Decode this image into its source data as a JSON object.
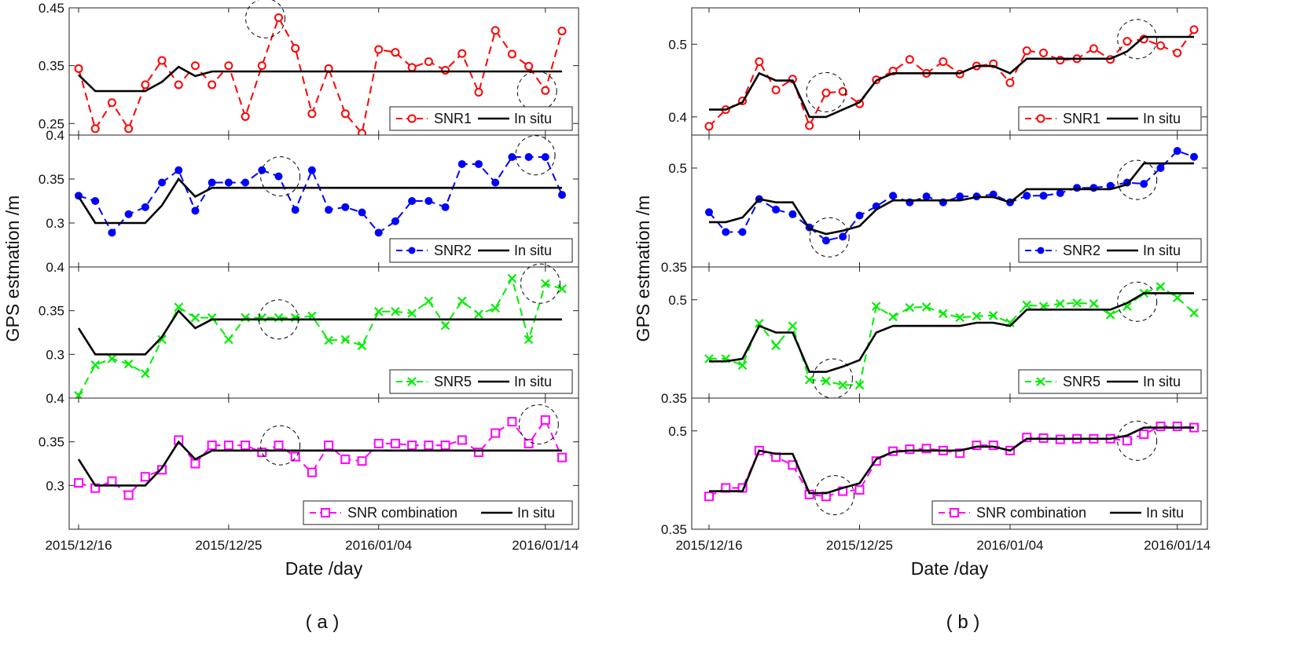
{
  "figure": {
    "panel_captions": [
      "( a )",
      "( b )"
    ],
    "ylabel": "GPS estmation /m",
    "xlabel": "Date /day",
    "xticks": [
      {
        "day": 1,
        "label": "2015/12/16"
      },
      {
        "day": 10,
        "label": "2015/12/25"
      },
      {
        "day": 19,
        "label": "2016/01/04"
      },
      {
        "day": 29,
        "label": "2016/01/14"
      }
    ]
  },
  "colors": {
    "snr1": "#ff0000",
    "snr2": "#0000ff",
    "snr5": "#00ee00",
    "combo": "#ff00ff",
    "insitu": "#000000"
  },
  "chart_data": [
    {
      "panel": "a",
      "type": "line",
      "subplots": [
        {
          "yticks": [
            {
              "v": 0.25,
              "label": "0.25"
            },
            {
              "v": 0.35,
              "label": "0.35"
            },
            {
              "v": 0.45,
              "label": "0.45"
            }
          ],
          "ylim": [
            0.23,
            0.45
          ],
          "series": [
            {
              "name": "SNR1",
              "style": "circle-dashed",
              "color": "snr1",
              "values": [
                0.345,
                0.241,
                0.286,
                0.241,
                0.317,
                0.359,
                0.317,
                0.35,
                0.317,
                0.35,
                0.262,
                0.35,
                0.433,
                0.38,
                0.267,
                0.345,
                0.267,
                0.233,
                0.378,
                0.373,
                0.347,
                0.357,
                0.342,
                0.371,
                0.304,
                0.411,
                0.37,
                0.349,
                0.307,
                0.41
              ]
            },
            {
              "name": "In situ",
              "style": "solid",
              "color": "insitu",
              "values": [
                0.334,
                0.306,
                0.306,
                0.306,
                0.306,
                0.322,
                0.348,
                0.332,
                0.34,
                0.34,
                0.34,
                0.34,
                0.34,
                0.34,
                0.34,
                0.34,
                0.34,
                0.34,
                0.34,
                0.34,
                0.34,
                0.34,
                0.34,
                0.34,
                0.34,
                0.34,
                0.34,
                0.34,
                0.34,
                0.34
              ]
            }
          ],
          "circles": [
            {
              "day": 12.2,
              "v": 0.432
            },
            {
              "day": 28.5,
              "v": 0.306
            }
          ]
        },
        {
          "yticks": [
            {
              "v": 0.3,
              "label": "0.3"
            },
            {
              "v": 0.35,
              "label": "0.35"
            },
            {
              "v": 0.4,
              "label": "0.4"
            }
          ],
          "ylim": [
            0.25,
            0.4
          ],
          "series": [
            {
              "name": "SNR2",
              "style": "dot-dashed",
              "color": "snr2",
              "values": [
                0.331,
                0.325,
                0.289,
                0.31,
                0.318,
                0.346,
                0.36,
                0.314,
                0.346,
                0.346,
                0.346,
                0.36,
                0.353,
                0.315,
                0.36,
                0.315,
                0.318,
                0.312,
                0.289,
                0.302,
                0.325,
                0.325,
                0.318,
                0.367,
                0.367,
                0.346,
                0.375,
                0.375,
                0.375,
                0.332
              ]
            },
            {
              "name": "In situ",
              "style": "solid",
              "color": "insitu",
              "values": [
                0.33,
                0.3,
                0.3,
                0.3,
                0.3,
                0.32,
                0.35,
                0.33,
                0.34,
                0.34,
                0.34,
                0.34,
                0.34,
                0.34,
                0.34,
                0.34,
                0.34,
                0.34,
                0.34,
                0.34,
                0.34,
                0.34,
                0.34,
                0.34,
                0.34,
                0.34,
                0.34,
                0.34,
                0.34,
                0.34
              ]
            }
          ],
          "circles": [
            {
              "day": 13.1,
              "v": 0.353
            },
            {
              "day": 28.4,
              "v": 0.377
            }
          ]
        },
        {
          "yticks": [
            {
              "v": 0.3,
              "label": "0.3"
            },
            {
              "v": 0.35,
              "label": "0.35"
            },
            {
              "v": 0.4,
              "label": "0.4"
            }
          ],
          "ylim": [
            0.25,
            0.4
          ],
          "series": [
            {
              "name": "SNR5",
              "style": "x-dashed",
              "color": "snr5",
              "values": [
                0.253,
                0.288,
                0.295,
                0.289,
                0.278,
                0.317,
                0.354,
                0.342,
                0.342,
                0.317,
                0.342,
                0.342,
                0.342,
                0.342,
                0.344,
                0.316,
                0.317,
                0.31,
                0.349,
                0.349,
                0.347,
                0.361,
                0.333,
                0.361,
                0.346,
                0.353,
                0.387,
                0.317,
                0.381,
                0.375
              ]
            },
            {
              "name": "In situ",
              "style": "solid",
              "color": "insitu",
              "values": [
                0.33,
                0.3,
                0.3,
                0.3,
                0.3,
                0.32,
                0.35,
                0.33,
                0.34,
                0.34,
                0.34,
                0.34,
                0.34,
                0.34,
                0.34,
                0.34,
                0.34,
                0.34,
                0.34,
                0.34,
                0.34,
                0.34,
                0.34,
                0.34,
                0.34,
                0.34,
                0.34,
                0.34,
                0.34,
                0.34
              ]
            }
          ],
          "circles": [
            {
              "day": 13.0,
              "v": 0.34
            },
            {
              "day": 28.7,
              "v": 0.381
            }
          ]
        },
        {
          "yticks": [
            {
              "v": 0.3,
              "label": "0.3"
            },
            {
              "v": 0.35,
              "label": "0.35"
            },
            {
              "v": 0.4,
              "label": "0.4"
            }
          ],
          "ylim": [
            0.25,
            0.4
          ],
          "series": [
            {
              "name": "SNR combination",
              "style": "square-dashed",
              "color": "combo",
              "values": [
                0.303,
                0.297,
                0.305,
                0.289,
                0.31,
                0.318,
                0.352,
                0.325,
                0.346,
                0.346,
                0.346,
                0.338,
                0.346,
                0.333,
                0.315,
                0.346,
                0.33,
                0.328,
                0.348,
                0.348,
                0.346,
                0.346,
                0.346,
                0.352,
                0.338,
                0.36,
                0.373,
                0.348,
                0.375,
                0.332
              ]
            },
            {
              "name": "In situ",
              "style": "solid",
              "color": "insitu",
              "values": [
                0.33,
                0.3,
                0.3,
                0.3,
                0.3,
                0.32,
                0.35,
                0.33,
                0.34,
                0.34,
                0.34,
                0.34,
                0.34,
                0.34,
                0.34,
                0.34,
                0.34,
                0.34,
                0.34,
                0.34,
                0.34,
                0.34,
                0.34,
                0.34,
                0.34,
                0.34,
                0.34,
                0.34,
                0.34,
                0.34
              ]
            }
          ],
          "circles": [
            {
              "day": 13.1,
              "v": 0.346
            },
            {
              "day": 28.6,
              "v": 0.37
            }
          ]
        }
      ]
    },
    {
      "panel": "b",
      "type": "line",
      "subplots": [
        {
          "yticks": [
            {
              "v": 0.4,
              "label": "0.4"
            },
            {
              "v": 0.5,
              "label": "0.5"
            }
          ],
          "ylim": [
            0.375,
            0.55
          ],
          "series": [
            {
              "name": "SNR1",
              "style": "circle-dashed",
              "color": "snr1",
              "values": [
                0.387,
                0.41,
                0.422,
                0.476,
                0.437,
                0.452,
                0.388,
                0.433,
                0.435,
                0.418,
                0.451,
                0.463,
                0.479,
                0.46,
                0.476,
                0.459,
                0.47,
                0.473,
                0.447,
                0.491,
                0.488,
                0.478,
                0.48,
                0.494,
                0.479,
                0.504,
                0.507,
                0.498,
                0.488,
                0.52
              ]
            },
            {
              "name": "In situ",
              "style": "solid",
              "color": "insitu",
              "values": [
                0.41,
                0.41,
                0.42,
                0.46,
                0.45,
                0.45,
                0.4,
                0.4,
                0.41,
                0.42,
                0.45,
                0.46,
                0.46,
                0.46,
                0.46,
                0.46,
                0.47,
                0.47,
                0.46,
                0.48,
                0.48,
                0.48,
                0.48,
                0.48,
                0.48,
                0.49,
                0.51,
                0.51,
                0.51,
                0.51
              ]
            }
          ],
          "circles": [
            {
              "day": 8.0,
              "v": 0.434
            },
            {
              "day": 26.6,
              "v": 0.507
            }
          ]
        },
        {
          "yticks": [
            {
              "v": 0.35,
              "label": "0.35"
            },
            {
              "v": 0.5,
              "label": "0.5"
            }
          ],
          "ylim": [
            0.35,
            0.55
          ],
          "series": [
            {
              "name": "SNR2",
              "style": "dot-dashed",
              "color": "snr2",
              "values": [
                0.433,
                0.403,
                0.403,
                0.453,
                0.437,
                0.43,
                0.41,
                0.39,
                0.396,
                0.428,
                0.442,
                0.458,
                0.448,
                0.457,
                0.448,
                0.457,
                0.457,
                0.46,
                0.448,
                0.458,
                0.458,
                0.462,
                0.47,
                0.47,
                0.473,
                0.478,
                0.476,
                0.5,
                0.526,
                0.517
              ]
            },
            {
              "name": "In situ",
              "style": "solid",
              "color": "insitu",
              "values": [
                0.418,
                0.418,
                0.425,
                0.453,
                0.448,
                0.448,
                0.408,
                0.4,
                0.405,
                0.412,
                0.437,
                0.451,
                0.451,
                0.451,
                0.451,
                0.451,
                0.456,
                0.456,
                0.448,
                0.468,
                0.468,
                0.468,
                0.468,
                0.468,
                0.468,
                0.475,
                0.507,
                0.507,
                0.507,
                0.507
              ]
            }
          ],
          "circles": [
            {
              "day": 8.2,
              "v": 0.395
            },
            {
              "day": 26.6,
              "v": 0.482
            }
          ]
        },
        {
          "yticks": [
            {
              "v": 0.35,
              "label": "0.35"
            },
            {
              "v": 0.5,
              "label": "0.5"
            }
          ],
          "ylim": [
            0.35,
            0.55
          ],
          "series": [
            {
              "name": "SNR5",
              "style": "x-dashed",
              "color": "snr5",
              "values": [
                0.41,
                0.41,
                0.4,
                0.464,
                0.43,
                0.46,
                0.378,
                0.376,
                0.37,
                0.37,
                0.49,
                0.474,
                0.488,
                0.489,
                0.479,
                0.473,
                0.475,
                0.476,
                0.465,
                0.492,
                0.49,
                0.494,
                0.495,
                0.494,
                0.477,
                0.49,
                0.51,
                0.52,
                0.503,
                0.48
              ]
            },
            {
              "name": "In situ",
              "style": "solid",
              "color": "insitu",
              "values": [
                0.406,
                0.406,
                0.41,
                0.46,
                0.45,
                0.45,
                0.39,
                0.39,
                0.398,
                0.408,
                0.45,
                0.46,
                0.46,
                0.46,
                0.46,
                0.46,
                0.465,
                0.465,
                0.46,
                0.485,
                0.485,
                0.485,
                0.485,
                0.485,
                0.485,
                0.495,
                0.51,
                0.51,
                0.51,
                0.51
              ]
            }
          ],
          "circles": [
            {
              "day": 8.4,
              "v": 0.38
            },
            {
              "day": 26.6,
              "v": 0.497
            }
          ]
        },
        {
          "yticks": [
            {
              "v": 0.35,
              "label": "0.35"
            },
            {
              "v": 0.5,
              "label": "0.5"
            }
          ],
          "ylim": [
            0.35,
            0.55
          ],
          "series": [
            {
              "name": "SNR combination",
              "style": "square-dashed",
              "color": "combo",
              "values": [
                0.4,
                0.413,
                0.413,
                0.47,
                0.46,
                0.448,
                0.403,
                0.4,
                0.408,
                0.41,
                0.454,
                0.469,
                0.472,
                0.473,
                0.47,
                0.466,
                0.478,
                0.478,
                0.47,
                0.49,
                0.489,
                0.487,
                0.488,
                0.488,
                0.488,
                0.485,
                0.495,
                0.507,
                0.507,
                0.505
              ]
            },
            {
              "name": "In situ",
              "style": "solid",
              "color": "insitu",
              "values": [
                0.408,
                0.408,
                0.408,
                0.47,
                0.465,
                0.465,
                0.405,
                0.405,
                0.413,
                0.42,
                0.457,
                0.468,
                0.47,
                0.47,
                0.47,
                0.47,
                0.476,
                0.476,
                0.47,
                0.488,
                0.488,
                0.488,
                0.488,
                0.488,
                0.488,
                0.493,
                0.505,
                0.505,
                0.505,
                0.505
              ]
            }
          ],
          "circles": [
            {
              "day": 8.5,
              "v": 0.402
            },
            {
              "day": 26.6,
              "v": 0.485
            }
          ]
        }
      ]
    }
  ]
}
